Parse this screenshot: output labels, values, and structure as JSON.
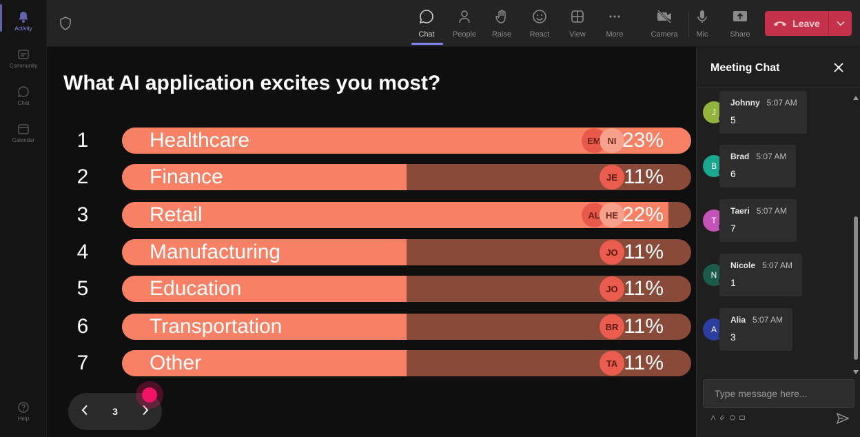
{
  "rail": {
    "items": [
      {
        "label": "Activity",
        "icon": "bell-icon",
        "active": true
      },
      {
        "label": "Community",
        "icon": "community-icon",
        "active": false
      },
      {
        "label": "Chat",
        "icon": "chat-icon",
        "active": false
      },
      {
        "label": "Calendar",
        "icon": "calendar-icon",
        "active": false
      }
    ],
    "help_label": "Help"
  },
  "toolbar": {
    "chat": "Chat",
    "people": "People",
    "raise": "Raise",
    "react": "React",
    "view": "View",
    "more": "More",
    "camera": "Camera",
    "mic": "Mic",
    "share": "Share",
    "leave": "Leave"
  },
  "poll": {
    "question": "What AI application excites you most?",
    "options": [
      {
        "num": "1",
        "label": "Healthcare",
        "percent": "23%",
        "fraction": 1.0,
        "avatars": [
          "EM",
          "NI"
        ]
      },
      {
        "num": "2",
        "label": "Finance",
        "percent": "11%",
        "fraction": 0.5,
        "avatars": [
          "JE"
        ]
      },
      {
        "num": "3",
        "label": "Retail",
        "percent": "22%",
        "fraction": 0.96,
        "avatars": [
          "AL",
          "HE"
        ]
      },
      {
        "num": "4",
        "label": "Manufacturing",
        "percent": "11%",
        "fraction": 0.5,
        "avatars": [
          "JO"
        ]
      },
      {
        "num": "5",
        "label": "Education",
        "percent": "11%",
        "fraction": 0.5,
        "avatars": [
          "JO"
        ]
      },
      {
        "num": "6",
        "label": "Transportation",
        "percent": "11%",
        "fraction": 0.5,
        "avatars": [
          "BR"
        ]
      },
      {
        "num": "7",
        "label": "Other",
        "percent": "11%",
        "fraction": 0.5,
        "avatars": [
          "TA"
        ]
      }
    ],
    "page": "3"
  },
  "chat": {
    "title": "Meeting Chat",
    "messages": [
      {
        "initial": "J",
        "name": "Johnny",
        "time": "5:07 AM",
        "text": "5",
        "color": "#92b33c"
      },
      {
        "initial": "B",
        "name": "Brad",
        "time": "5:07 AM",
        "text": "6",
        "color": "#19a88f"
      },
      {
        "initial": "T",
        "name": "Taeri",
        "time": "5:07 AM",
        "text": "7",
        "color": "#c453b8"
      },
      {
        "initial": "N",
        "name": "Nicole",
        "time": "5:07 AM",
        "text": "1",
        "color": "#1c5b4c"
      },
      {
        "initial": "A",
        "name": "Alia",
        "time": "5:07 AM",
        "text": "3",
        "color": "#2c3fa0"
      }
    ],
    "input_placeholder": "Type message here..."
  },
  "colors": {
    "bar_fill": "#f78065",
    "bar_track": "#8a4a3a",
    "leave": "#c4314b",
    "accent": "#7f85f5",
    "cursor_dot": "#f01468"
  }
}
